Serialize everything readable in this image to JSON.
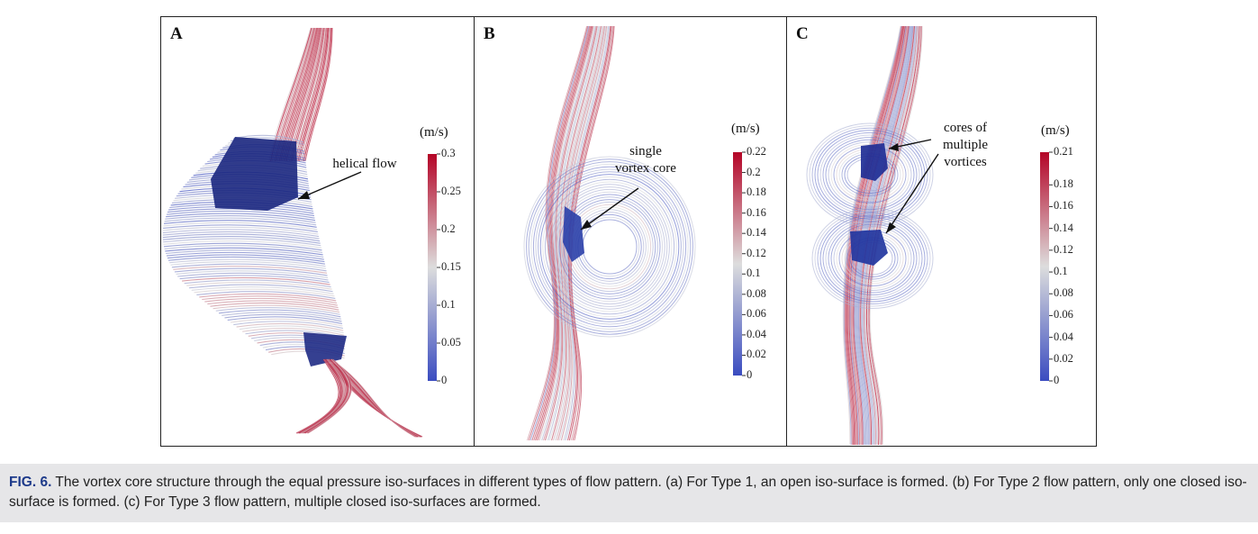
{
  "figure": {
    "panels": [
      {
        "letter": "A",
        "unit": "(m/s)",
        "ticks": [
          "0.3",
          "0.25",
          "0.2",
          "0.15",
          "0.1",
          "0.05",
          "0"
        ],
        "tick_values": [
          0.3,
          0.25,
          0.2,
          0.15,
          0.1,
          0.05,
          0
        ],
        "vmax": 0.3,
        "annotation": "helical flow"
      },
      {
        "letter": "B",
        "unit": "(m/s)",
        "ticks": [
          "0.22",
          "0.2",
          "0.18",
          "0.16",
          "0.14",
          "0.12",
          "0.1",
          "0.08",
          "0.06",
          "0.04",
          "0.02",
          "0"
        ],
        "tick_values": [
          0.22,
          0.2,
          0.18,
          0.16,
          0.14,
          0.12,
          0.1,
          0.08,
          0.06,
          0.04,
          0.02,
          0
        ],
        "vmax": 0.22,
        "annotation_lines": [
          "single",
          "vortex core"
        ]
      },
      {
        "letter": "C",
        "unit": "(m/s)",
        "ticks": [
          "0.21",
          "0.18",
          "0.16",
          "0.14",
          "0.12",
          "0.1",
          "0.08",
          "0.06",
          "0.04",
          "0.02",
          "0"
        ],
        "tick_values": [
          0.21,
          0.18,
          0.16,
          0.14,
          0.12,
          0.1,
          0.08,
          0.06,
          0.04,
          0.02,
          0
        ],
        "vmax": 0.21,
        "annotation_lines": [
          "cores of",
          "multiple",
          "vortices"
        ]
      }
    ],
    "colormap": {
      "low": "#3a4cc0",
      "mid": "#dddddd",
      "high": "#b40426"
    }
  },
  "caption": {
    "label": "FIG. 6.",
    "text": " The vortex core structure through the equal pressure iso-surfaces in different types of flow pattern. (a) For Type 1, an open iso-surface is formed. (b) For Type 2 flow pattern, only one closed iso-surface is formed. (c) For Type 3 flow pattern, multiple closed iso-surfaces are formed."
  }
}
